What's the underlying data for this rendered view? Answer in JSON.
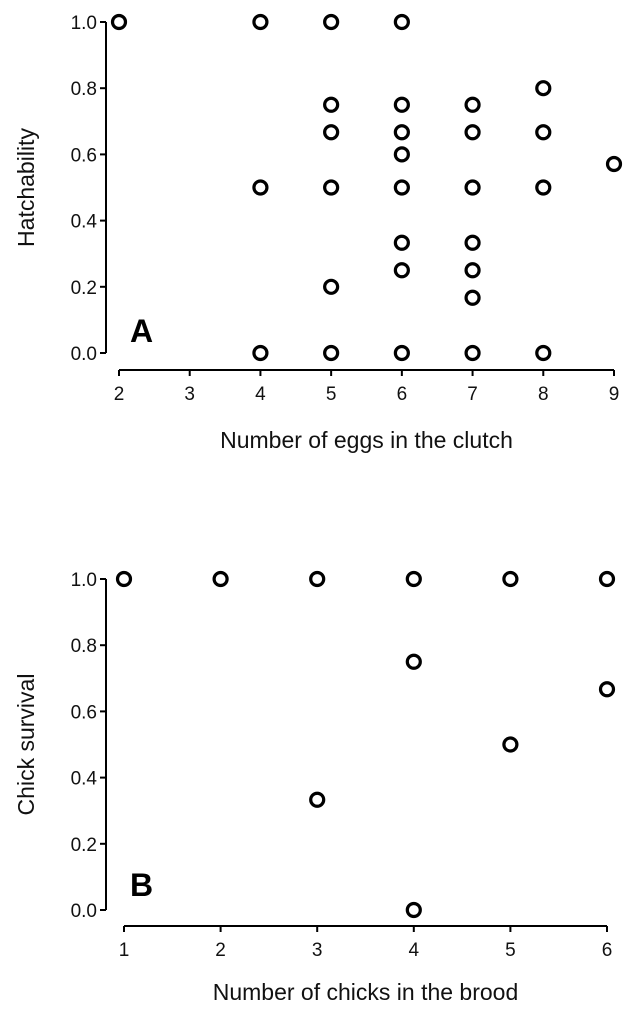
{
  "chart_data": [
    {
      "type": "scatter",
      "panel_label": "A",
      "xlabel": "Number of eggs in the clutch",
      "ylabel": "Hatchability",
      "xlim": [
        2,
        9
      ],
      "ylim": [
        0,
        1
      ],
      "x_ticks": [
        "2",
        "3",
        "4",
        "5",
        "6",
        "7",
        "8",
        "9"
      ],
      "y_ticks": [
        "0.0",
        "0.2",
        "0.4",
        "0.6",
        "0.8",
        "1.0"
      ],
      "points": [
        {
          "x": 2,
          "y": 1.0
        },
        {
          "x": 4,
          "y": 1.0
        },
        {
          "x": 4,
          "y": 0.5
        },
        {
          "x": 4,
          "y": 0.0
        },
        {
          "x": 5,
          "y": 1.0
        },
        {
          "x": 5,
          "y": 0.75
        },
        {
          "x": 5,
          "y": 0.667
        },
        {
          "x": 5,
          "y": 0.5
        },
        {
          "x": 5,
          "y": 0.2
        },
        {
          "x": 5,
          "y": 0.0
        },
        {
          "x": 6,
          "y": 1.0
        },
        {
          "x": 6,
          "y": 0.75
        },
        {
          "x": 6,
          "y": 0.667
        },
        {
          "x": 6,
          "y": 0.6
        },
        {
          "x": 6,
          "y": 0.5
        },
        {
          "x": 6,
          "y": 0.333
        },
        {
          "x": 6,
          "y": 0.25
        },
        {
          "x": 6,
          "y": 0.0
        },
        {
          "x": 7,
          "y": 0.75
        },
        {
          "x": 7,
          "y": 0.667
        },
        {
          "x": 7,
          "y": 0.5
        },
        {
          "x": 7,
          "y": 0.333
        },
        {
          "x": 7,
          "y": 0.25
        },
        {
          "x": 7,
          "y": 0.167
        },
        {
          "x": 7,
          "y": 0.0
        },
        {
          "x": 8,
          "y": 0.8
        },
        {
          "x": 8,
          "y": 0.667
        },
        {
          "x": 8,
          "y": 0.5
        },
        {
          "x": 8,
          "y": 0.0
        },
        {
          "x": 9,
          "y": 0.571
        }
      ]
    },
    {
      "type": "scatter",
      "panel_label": "B",
      "xlabel": "Number of chicks in the brood",
      "ylabel": "Chick survival",
      "xlim": [
        1,
        6
      ],
      "ylim": [
        0,
        1
      ],
      "x_ticks": [
        "1",
        "2",
        "3",
        "4",
        "5",
        "6"
      ],
      "y_ticks": [
        "0.0",
        "0.2",
        "0.4",
        "0.6",
        "0.8",
        "1.0"
      ],
      "points": [
        {
          "x": 1,
          "y": 1.0
        },
        {
          "x": 2,
          "y": 1.0
        },
        {
          "x": 3,
          "y": 1.0
        },
        {
          "x": 3,
          "y": 0.333
        },
        {
          "x": 4,
          "y": 1.0
        },
        {
          "x": 4,
          "y": 0.75
        },
        {
          "x": 4,
          "y": 0.0
        },
        {
          "x": 5,
          "y": 1.0
        },
        {
          "x": 5,
          "y": 0.5
        },
        {
          "x": 6,
          "y": 1.0
        },
        {
          "x": 6,
          "y": 0.667
        }
      ]
    }
  ]
}
